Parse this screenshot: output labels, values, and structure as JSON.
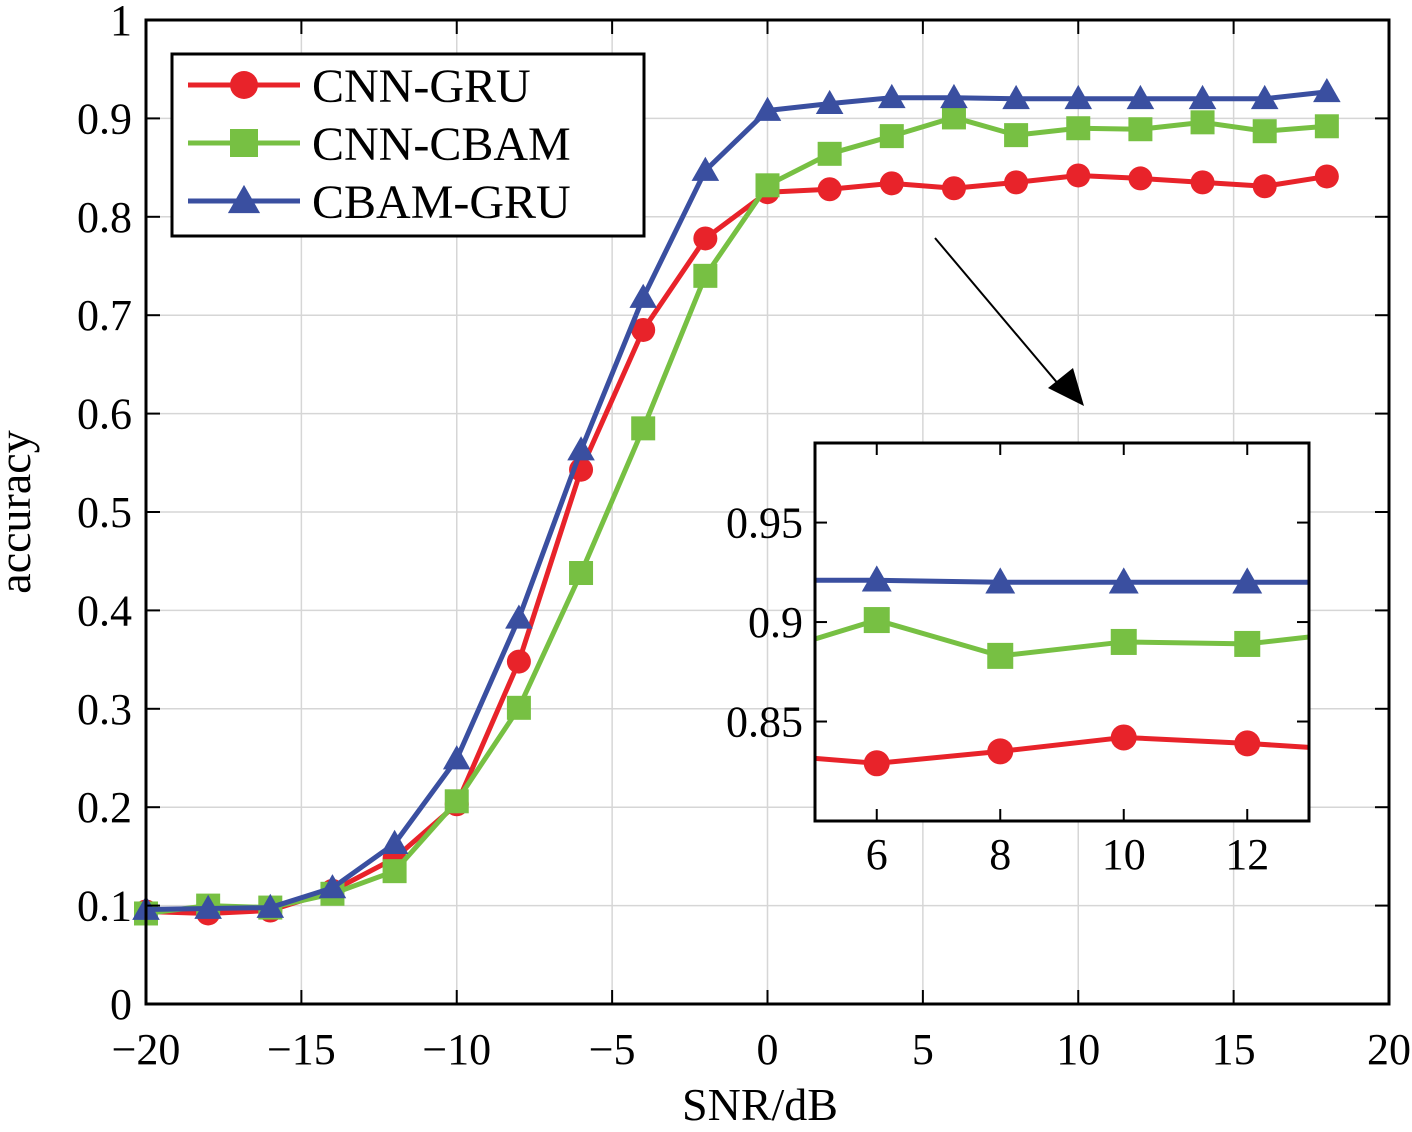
{
  "chart_data": {
    "type": "line",
    "title": "",
    "xlabel": "SNR/dB",
    "ylabel": "accuracy",
    "xlim": [
      -20,
      20
    ],
    "ylim": [
      0,
      1
    ],
    "xticks": [
      -20,
      -15,
      -10,
      -5,
      0,
      5,
      10,
      15,
      20
    ],
    "xtick_labels": [
      "−20",
      "−15",
      "−10",
      "−5",
      "0",
      "5",
      "10",
      "15",
      "20"
    ],
    "yticks": [
      0,
      0.1,
      0.2,
      0.3,
      0.4,
      0.5,
      0.6,
      0.7,
      0.8,
      0.9,
      1
    ],
    "ytick_labels": [
      "0",
      "0.1",
      "0.2",
      "0.3",
      "0.4",
      "0.5",
      "0.6",
      "0.7",
      "0.8",
      "0.9",
      "1"
    ],
    "grid": true,
    "legend_position": "top-left",
    "x": [
      -20,
      -18,
      -16,
      -14,
      -12,
      -10,
      -8,
      -6,
      -4,
      -2,
      0,
      2,
      4,
      6,
      8,
      10,
      12,
      14,
      16,
      18
    ],
    "series": [
      {
        "name": "CNN-GRU",
        "color": "#e8232a",
        "marker": "circle",
        "values": [
          0.094,
          0.092,
          0.095,
          0.115,
          0.148,
          0.203,
          0.348,
          0.543,
          0.685,
          0.778,
          0.825,
          0.828,
          0.834,
          0.829,
          0.835,
          0.842,
          0.839,
          0.835,
          0.831,
          0.841
        ]
      },
      {
        "name": "CNN-CBAM",
        "color": "#77c043",
        "marker": "square",
        "values": [
          0.092,
          0.1,
          0.098,
          0.112,
          0.135,
          0.206,
          0.301,
          0.438,
          0.585,
          0.74,
          0.832,
          0.864,
          0.882,
          0.901,
          0.883,
          0.89,
          0.889,
          0.896,
          0.887,
          0.892
        ]
      },
      {
        "name": "CBAM-GRU",
        "color": "#3a4fa0",
        "marker": "triangle",
        "values": [
          0.096,
          0.097,
          0.098,
          0.118,
          0.163,
          0.249,
          0.392,
          0.563,
          0.718,
          0.847,
          0.908,
          0.915,
          0.921,
          0.921,
          0.92,
          0.92,
          0.92,
          0.92,
          0.92,
          0.927
        ]
      }
    ],
    "inset": {
      "xlim": [
        5,
        13
      ],
      "ylim": [
        0.8,
        0.99
      ],
      "xticks": [
        6,
        8,
        10,
        12
      ],
      "xtick_labels": [
        "6",
        "8",
        "10",
        "12"
      ],
      "yticks": [
        0.85,
        0.9,
        0.95
      ],
      "ytick_labels": [
        "0.85",
        "0.9",
        "0.95"
      ]
    }
  }
}
